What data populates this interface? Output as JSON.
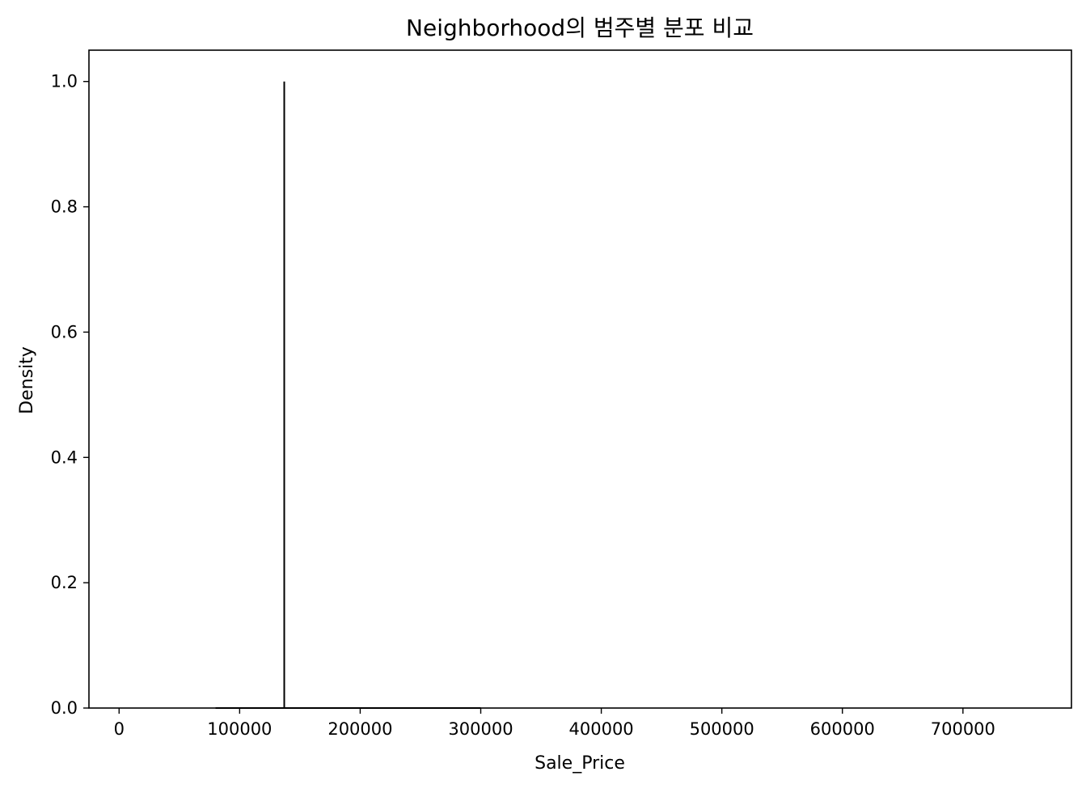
{
  "chart_data": {
    "type": "line",
    "title": "Neighborhood의 범주별 분포 비교",
    "xlabel": "Sale_Price",
    "ylabel": "Density",
    "xlim": [
      -25000,
      790000
    ],
    "ylim": [
      0.0,
      1.05
    ],
    "xticks": [
      0,
      100000,
      200000,
      300000,
      400000,
      500000,
      600000,
      700000
    ],
    "xtick_labels": [
      "0",
      "100000",
      "200000",
      "300000",
      "400000",
      "500000",
      "600000",
      "700000"
    ],
    "yticks": [
      0.0,
      0.2,
      0.4,
      0.6,
      0.8,
      1.0
    ],
    "ytick_labels": [
      "0.0",
      "0.2",
      "0.4",
      "0.6",
      "0.8",
      "1.0"
    ],
    "grid": false,
    "series": [
      {
        "color": "#000000",
        "x": [
          80000,
          137000,
          137000,
          137000,
          300000
        ],
        "y": [
          0.0,
          0.0,
          1.0,
          0.0,
          0.0
        ]
      }
    ]
  }
}
